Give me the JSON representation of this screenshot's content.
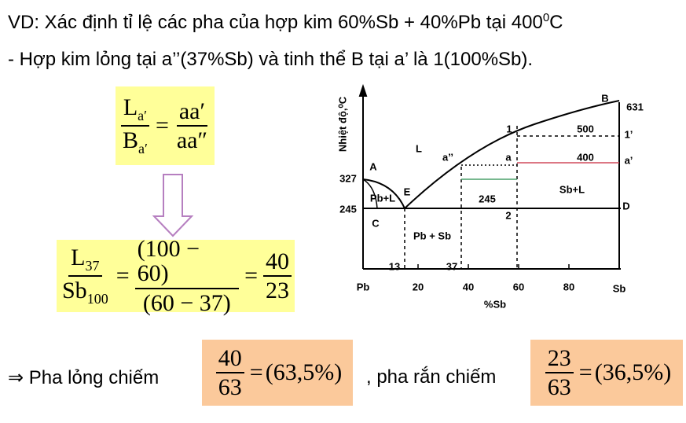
{
  "heading": {
    "line1": "VD: Xác định tỉ lệ các pha của hợp kim 60%Sb + 40%Pb tại 400",
    "line1_sup": "0",
    "line1_end": "C",
    "line2": "- Hợp kim lỏng tại a’’(37%Sb) và tinh thể B tại a’ là 1(100%Sb)."
  },
  "lever_rule": {
    "num": "L",
    "num_sub": "a′",
    "den": "B",
    "den_sub": "a′",
    "eq": "=",
    "right_num": "aa′",
    "right_den": "aa″"
  },
  "calculation": {
    "f1_num": "L",
    "f1_num_sub": "37",
    "f1_den": "Sb",
    "f1_den_sub": "100",
    "eq1": "=",
    "f2_num": "(100 − 60)",
    "f2_den": "(60 − 37)",
    "eq2": "=",
    "f3_num": "40",
    "f3_den": "23"
  },
  "result": {
    "prefix": "⇒ Pha lỏng chiếm",
    "liquid_num": "40",
    "liquid_den": "63",
    "liquid_eq": "=",
    "liquid_pct": "(63,5%)",
    "middle": ", pha rắn chiếm",
    "solid_num": "23",
    "solid_den": "63",
    "solid_eq": "=",
    "solid_pct": "(36,5%)"
  },
  "diagram": {
    "y_title": "Nhiệt độ,⁰C",
    "x_title": "%Sb",
    "x_ticks": [
      "Pb",
      "20",
      "40",
      "60",
      "80",
      "Sb"
    ],
    "labels": {
      "B": "B",
      "t631": "631",
      "p1": "1",
      "t500": "500",
      "p1p": "1’",
      "L": "L",
      "a2": "a’’",
      "a": "a",
      "t400": "400",
      "ap": "a’",
      "A": "A",
      "t327": "327",
      "PbL": "Pb+L",
      "E": "E",
      "t245a": "245",
      "t245b": "245",
      "SbL": "Sb+L",
      "D": "D",
      "C": "C",
      "p2": "2",
      "PbSb": "Pb + Sb",
      "c13": "13",
      "c37": "37"
    }
  }
}
